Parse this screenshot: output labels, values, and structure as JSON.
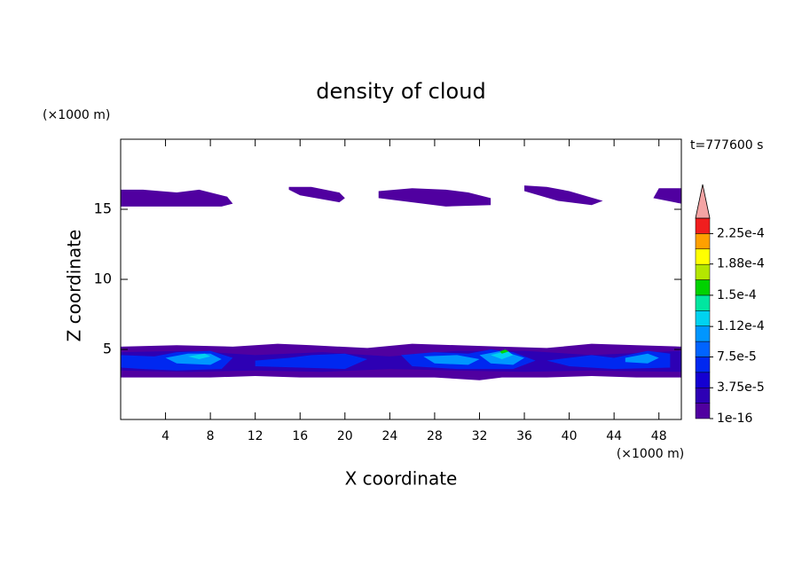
{
  "chart_data": {
    "type": "contour",
    "title": "density of cloud",
    "x_label": "X coordinate",
    "y_label": "Z coordinate",
    "x_unit": "(×1000 m)",
    "y_unit": "(×1000 m)",
    "annotation": "t=777600 s",
    "xlim": [
      0,
      50
    ],
    "ylim": [
      0,
      20
    ],
    "xticks": [
      4,
      8,
      12,
      16,
      20,
      24,
      28,
      32,
      36,
      40,
      44,
      48
    ],
    "yticks": [
      5,
      10,
      15
    ],
    "colorbar": {
      "lim": [
        0,
        0.00024375
      ],
      "colors": [
        "#5000a0",
        "#2d00b4",
        "#1400d2",
        "#0028f0",
        "#0064ff",
        "#0096ff",
        "#00d2f0",
        "#00e6a0",
        "#00d200",
        "#b4e600",
        "#ffff00",
        "#ffa000",
        "#f01e1e"
      ],
      "overflow_color": "#f4a4a4",
      "ticks": [
        1e-16,
        {
          "value": 3.75e-05,
          "label": "3.75e-5"
        },
        {
          "value": 7.5e-05,
          "label": "7.5e-5"
        },
        {
          "value": 0.000112,
          "label": "1.12e-4"
        },
        {
          "value": 0.00015,
          "label": "1.5e-4"
        },
        {
          "value": 0.000188,
          "label": "1.88e-4"
        },
        {
          "value": 0.000225,
          "label": "2.25e-4"
        }
      ]
    },
    "regions": [
      {
        "color": "#5000a0",
        "x": [
          0,
          2,
          5,
          7,
          9.5,
          10,
          9,
          0
        ],
        "z": [
          16.4,
          16.4,
          16.2,
          16.4,
          15.9,
          15.4,
          15.2,
          15.2
        ]
      },
      {
        "color": "#5000a0",
        "x": [
          15,
          17,
          19.5,
          20,
          19.5,
          16,
          15
        ],
        "z": [
          16.6,
          16.6,
          16.2,
          15.8,
          15.5,
          16.0,
          16.4
        ]
      },
      {
        "color": "#5000a0",
        "x": [
          23,
          26,
          29,
          31,
          33,
          33,
          29,
          26,
          23
        ],
        "z": [
          16.3,
          16.5,
          16.4,
          16.2,
          15.8,
          15.3,
          15.2,
          15.5,
          15.8
        ]
      },
      {
        "color": "#5000a0",
        "x": [
          36,
          38,
          40,
          43,
          42,
          39,
          36
        ],
        "z": [
          16.7,
          16.6,
          16.3,
          15.6,
          15.3,
          15.6,
          16.3
        ]
      },
      {
        "color": "#5000a0",
        "x": [
          48,
          50,
          50,
          47.5
        ],
        "z": [
          16.5,
          16.5,
          15.4,
          15.8
        ]
      },
      {
        "color": "#5000a0",
        "x": [
          0,
          5,
          10,
          14,
          17,
          22,
          26,
          30,
          34,
          38,
          42,
          46,
          50,
          50,
          46,
          42,
          38,
          34,
          32,
          28,
          24,
          20,
          16,
          12,
          8,
          4,
          0
        ],
        "z": [
          5.2,
          5.3,
          5.2,
          5.4,
          5.3,
          5.1,
          5.4,
          5.3,
          5.2,
          5.1,
          5.4,
          5.3,
          5.2,
          3.0,
          3.0,
          3.1,
          3.0,
          3.0,
          2.8,
          3.0,
          3.0,
          3.0,
          3.0,
          3.1,
          3.0,
          3.0,
          3.0
        ]
      },
      {
        "color": "#2d00b4",
        "x": [
          0,
          6,
          12,
          18,
          24,
          30,
          36,
          42,
          50,
          50,
          42,
          36,
          30,
          24,
          18,
          12,
          6,
          0
        ],
        "z": [
          4.8,
          4.9,
          4.6,
          4.8,
          4.5,
          4.9,
          4.9,
          4.6,
          4.9,
          3.4,
          3.5,
          3.4,
          3.5,
          3.6,
          3.4,
          3.5,
          3.4,
          3.5
        ]
      },
      {
        "color": "#0028f0",
        "x": [
          0,
          3,
          5,
          8,
          10,
          9,
          5,
          2,
          0
        ],
        "z": [
          4.6,
          4.5,
          4.8,
          4.9,
          4.4,
          3.6,
          3.5,
          3.6,
          3.7
        ]
      },
      {
        "color": "#0028f0",
        "x": [
          12,
          15,
          17,
          20,
          22,
          20,
          16,
          12
        ],
        "z": [
          4.2,
          4.4,
          4.6,
          4.7,
          4.3,
          3.6,
          3.7,
          3.8
        ]
      },
      {
        "color": "#0028f0",
        "x": [
          25,
          28,
          31,
          33,
          35,
          37,
          35,
          30,
          26
        ],
        "z": [
          4.6,
          4.8,
          4.7,
          5.0,
          4.8,
          4.2,
          3.6,
          3.6,
          3.8
        ]
      },
      {
        "color": "#0028f0",
        "x": [
          38,
          42,
          44,
          47,
          49,
          49,
          44,
          40
        ],
        "z": [
          4.2,
          4.6,
          4.4,
          4.9,
          4.7,
          3.7,
          3.6,
          3.8
        ]
      },
      {
        "color": "#0096ff",
        "x": [
          4,
          6,
          8,
          9,
          8,
          5
        ],
        "z": [
          4.4,
          4.7,
          4.7,
          4.3,
          3.9,
          4.0
        ]
      },
      {
        "color": "#0096ff",
        "x": [
          27,
          30,
          32,
          31,
          28
        ],
        "z": [
          4.5,
          4.6,
          4.3,
          3.9,
          4.0
        ]
      },
      {
        "color": "#0096ff",
        "x": [
          32,
          34,
          36,
          35,
          33
        ],
        "z": [
          4.6,
          4.9,
          4.4,
          3.9,
          4.0
        ]
      },
      {
        "color": "#0096ff",
        "x": [
          45,
          47,
          48,
          47,
          45
        ],
        "z": [
          4.4,
          4.7,
          4.4,
          4.0,
          4.1
        ]
      },
      {
        "color": "#00d2f0",
        "x": [
          6,
          7.5,
          8,
          7
        ],
        "z": [
          4.5,
          4.7,
          4.5,
          4.3
        ]
      },
      {
        "color": "#00d2f0",
        "x": [
          33,
          34.5,
          35,
          34
        ],
        "z": [
          4.6,
          4.9,
          4.6,
          4.3
        ]
      },
      {
        "color": "#00d200",
        "x": [
          33.8,
          34.3,
          34.6,
          34
        ],
        "z": [
          4.85,
          5.0,
          4.85,
          4.7
        ]
      }
    ]
  }
}
